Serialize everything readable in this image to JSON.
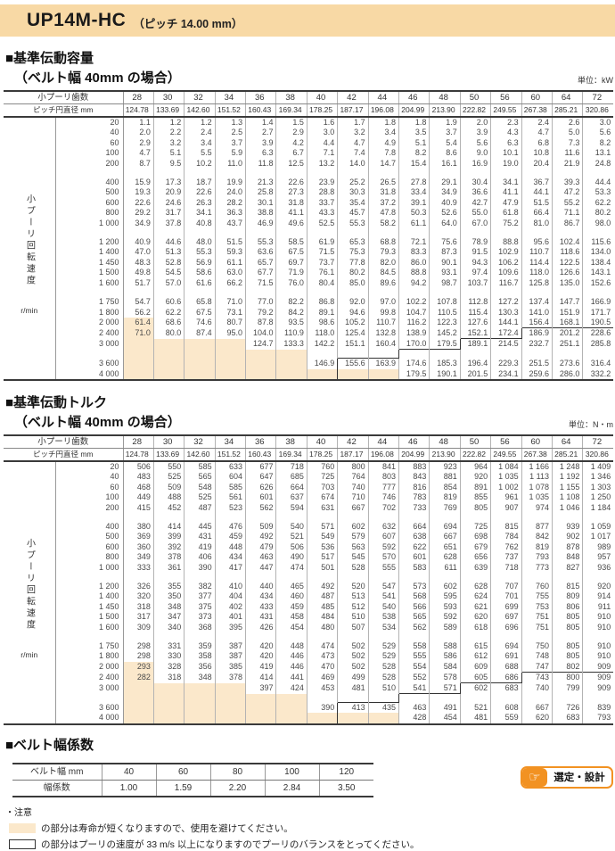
{
  "page": {
    "model": "UP14M-HC",
    "pitch_note": "（ピッチ 14.00 mm）"
  },
  "table_common": {
    "teeth_label": "小プーリ歯数",
    "diameter_label": "ピッチ円直径 mm",
    "teeth": [
      "28",
      "30",
      "32",
      "34",
      "36",
      "38",
      "40",
      "42",
      "44",
      "46",
      "48",
      "50",
      "56",
      "60",
      "64",
      "72"
    ],
    "diameters": [
      "124.78",
      "133.69",
      "142.60",
      "151.52",
      "160.43",
      "169.34",
      "178.25",
      "187.17",
      "196.08",
      "204.99",
      "213.90",
      "222.82",
      "249.55",
      "267.38",
      "285.21",
      "320.86"
    ],
    "side_label": "小プーリ回転速度",
    "side_unit": "r/min"
  },
  "capacity": {
    "title": "■基準伝動容量",
    "subtitle": "（ベルト幅 40mm の場合）",
    "unit": "単位：kW",
    "rows": [
      {
        "r": "20",
        "v": [
          "1.1",
          "1.2",
          "1.2",
          "1.3",
          "1.4",
          "1.5",
          "1.6",
          "1.7",
          "1.8",
          "1.8",
          "1.9",
          "2.0",
          "2.3",
          "2.4",
          "2.6",
          "3.0"
        ]
      },
      {
        "r": "40",
        "v": [
          "2.0",
          "2.2",
          "2.4",
          "2.5",
          "2.7",
          "2.9",
          "3.0",
          "3.2",
          "3.4",
          "3.5",
          "3.7",
          "3.9",
          "4.3",
          "4.7",
          "5.0",
          "5.6"
        ]
      },
      {
        "r": "60",
        "v": [
          "2.9",
          "3.2",
          "3.4",
          "3.7",
          "3.9",
          "4.2",
          "4.4",
          "4.7",
          "4.9",
          "5.1",
          "5.4",
          "5.6",
          "6.3",
          "6.8",
          "7.3",
          "8.2"
        ]
      },
      {
        "r": "100",
        "v": [
          "4.7",
          "5.1",
          "5.5",
          "5.9",
          "6.3",
          "6.7",
          "7.1",
          "7.4",
          "7.8",
          "8.2",
          "8.6",
          "9.0",
          "10.1",
          "10.8",
          "11.6",
          "13.1"
        ]
      },
      {
        "r": "200",
        "v": [
          "8.7",
          "9.5",
          "10.2",
          "11.0",
          "11.8",
          "12.5",
          "13.2",
          "14.0",
          "14.7",
          "15.4",
          "16.1",
          "16.9",
          "19.0",
          "20.4",
          "21.9",
          "24.8"
        ]
      },
      {
        "r": "400",
        "v": [
          "15.9",
          "17.3",
          "18.7",
          "19.9",
          "21.3",
          "22.6",
          "23.9",
          "25.2",
          "26.5",
          "27.8",
          "29.1",
          "30.4",
          "34.1",
          "36.7",
          "39.3",
          "44.4"
        ]
      },
      {
        "r": "500",
        "v": [
          "19.3",
          "20.9",
          "22.6",
          "24.0",
          "25.8",
          "27.3",
          "28.8",
          "30.3",
          "31.8",
          "33.4",
          "34.9",
          "36.6",
          "41.1",
          "44.1",
          "47.2",
          "53.3"
        ]
      },
      {
        "r": "600",
        "v": [
          "22.6",
          "24.6",
          "26.3",
          "28.2",
          "30.1",
          "31.8",
          "33.7",
          "35.4",
          "37.2",
          "39.1",
          "40.9",
          "42.7",
          "47.9",
          "51.5",
          "55.2",
          "62.2"
        ]
      },
      {
        "r": "800",
        "v": [
          "29.2",
          "31.7",
          "34.1",
          "36.3",
          "38.8",
          "41.1",
          "43.3",
          "45.7",
          "47.8",
          "50.3",
          "52.6",
          "55.0",
          "61.8",
          "66.4",
          "71.1",
          "80.2"
        ]
      },
      {
        "r": "1 000",
        "v": [
          "34.9",
          "37.8",
          "40.8",
          "43.7",
          "46.9",
          "49.6",
          "52.5",
          "55.3",
          "58.2",
          "61.1",
          "64.0",
          "67.0",
          "75.2",
          "81.0",
          "86.7",
          "98.0"
        ]
      },
      {
        "r": "1 200",
        "v": [
          "40.9",
          "44.6",
          "48.0",
          "51.5",
          "55.3",
          "58.5",
          "61.9",
          "65.3",
          "68.8",
          "72.1",
          "75.6",
          "78.9",
          "88.8",
          "95.6",
          "102.4",
          "115.6"
        ]
      },
      {
        "r": "1 400",
        "v": [
          "47.0",
          "51.3",
          "55.3",
          "59.3",
          "63.6",
          "67.5",
          "71.5",
          "75.3",
          "79.3",
          "83.3",
          "87.3",
          "91.5",
          "102.9",
          "110.7",
          "118.6",
          "134.0"
        ]
      },
      {
        "r": "1 450",
        "v": [
          "48.3",
          "52.8",
          "56.9",
          "61.1",
          "65.7",
          "69.7",
          "73.7",
          "77.8",
          "82.0",
          "86.0",
          "90.1",
          "94.3",
          "106.2",
          "114.4",
          "122.5",
          "138.4"
        ]
      },
      {
        "r": "1 500",
        "v": [
          "49.8",
          "54.5",
          "58.6",
          "63.0",
          "67.7",
          "71.9",
          "76.1",
          "80.2",
          "84.5",
          "88.8",
          "93.1",
          "97.4",
          "109.6",
          "118.0",
          "126.6",
          "143.1"
        ]
      },
      {
        "r": "1 600",
        "v": [
          "51.7",
          "57.0",
          "61.6",
          "66.2",
          "71.5",
          "76.0",
          "80.4",
          "85.0",
          "89.6",
          "94.2",
          "98.7",
          "103.7",
          "116.7",
          "125.8",
          "135.0",
          "152.6"
        ]
      },
      {
        "r": "1 750",
        "v": [
          "54.7",
          "60.6",
          "65.8",
          "71.0",
          "77.0",
          "82.2",
          "86.8",
          "92.0",
          "97.0",
          "102.2",
          "107.8",
          "112.8",
          "127.2",
          "137.4",
          "147.7",
          "166.9"
        ]
      },
      {
        "r": "1 800",
        "v": [
          "56.2",
          "62.2",
          "67.5",
          "73.1",
          "79.2",
          "84.2",
          "89.1",
          "94.6",
          "99.8",
          "104.7",
          "110.5",
          "115.4",
          "130.3",
          "141.0",
          "151.9",
          "171.7"
        ]
      },
      {
        "r": "2 000",
        "v": [
          "61.4",
          "68.6",
          "74.6",
          "80.7",
          "87.8",
          "93.5",
          "98.6",
          "105.2",
          "110.7",
          "116.2",
          "122.3",
          "127.6",
          "144.1",
          "156.4",
          "168.1",
          "190.5"
        ]
      },
      {
        "r": "2 400",
        "v": [
          "71.0",
          "80.0",
          "87.4",
          "95.0",
          "104.0",
          "110.9",
          "118.0",
          "125.4",
          "132.8",
          "138.9",
          "145.2",
          "152.1",
          "172.4",
          "186.9",
          "201.2",
          "228.6"
        ]
      },
      {
        "r": "3 000",
        "v": [
          "",
          "",
          "",
          "",
          "124.7",
          "133.3",
          "142.2",
          "151.1",
          "160.4",
          "170.0",
          "179.5",
          "189.1",
          "214.5",
          "232.7",
          "251.1",
          "285.8"
        ]
      },
      {
        "r": "3 600",
        "v": [
          "",
          "",
          "",
          "",
          "",
          "",
          "146.9",
          "155.6",
          "163.9",
          "174.6",
          "185.3",
          "196.4",
          "229.3",
          "251.5",
          "273.6",
          "316.4"
        ]
      },
      {
        "r": "4 000",
        "v": [
          "",
          "",
          "",
          "",
          "",
          "",
          "",
          "",
          "",
          "179.5",
          "190.1",
          "201.5",
          "234.1",
          "259.6",
          "286.0",
          "332.2"
        ]
      }
    ]
  },
  "torque": {
    "title": "■基準伝動トルク",
    "subtitle": "（ベルト幅 40mm の場合）",
    "unit": "単位：N・m",
    "rows": [
      {
        "r": "20",
        "v": [
          "506",
          "550",
          "585",
          "633",
          "677",
          "718",
          "760",
          "800",
          "841",
          "883",
          "923",
          "964",
          "1 084",
          "1 166",
          "1 248",
          "1 409"
        ]
      },
      {
        "r": "40",
        "v": [
          "483",
          "525",
          "565",
          "604",
          "647",
          "685",
          "725",
          "764",
          "803",
          "843",
          "881",
          "920",
          "1 035",
          "1 113",
          "1 192",
          "1 346"
        ]
      },
      {
        "r": "60",
        "v": [
          "468",
          "509",
          "548",
          "585",
          "626",
          "664",
          "703",
          "740",
          "777",
          "816",
          "854",
          "891",
          "1 002",
          "1 078",
          "1 155",
          "1 303"
        ]
      },
      {
        "r": "100",
        "v": [
          "449",
          "488",
          "525",
          "561",
          "601",
          "637",
          "674",
          "710",
          "746",
          "783",
          "819",
          "855",
          "961",
          "1 035",
          "1 108",
          "1 250"
        ]
      },
      {
        "r": "200",
        "v": [
          "415",
          "452",
          "487",
          "523",
          "562",
          "594",
          "631",
          "667",
          "702",
          "733",
          "769",
          "805",
          "907",
          "974",
          "1 046",
          "1 184"
        ]
      },
      {
        "r": "400",
        "v": [
          "380",
          "414",
          "445",
          "476",
          "509",
          "540",
          "571",
          "602",
          "632",
          "664",
          "694",
          "725",
          "815",
          "877",
          "939",
          "1 059"
        ]
      },
      {
        "r": "500",
        "v": [
          "369",
          "399",
          "431",
          "459",
          "492",
          "521",
          "549",
          "579",
          "607",
          "638",
          "667",
          "698",
          "784",
          "842",
          "902",
          "1 017"
        ]
      },
      {
        "r": "600",
        "v": [
          "360",
          "392",
          "419",
          "448",
          "479",
          "506",
          "536",
          "563",
          "592",
          "622",
          "651",
          "679",
          "762",
          "819",
          "878",
          "989"
        ]
      },
      {
        "r": "800",
        "v": [
          "349",
          "378",
          "406",
          "434",
          "463",
          "490",
          "517",
          "545",
          "570",
          "601",
          "628",
          "656",
          "737",
          "793",
          "848",
          "957"
        ]
      },
      {
        "r": "1 000",
        "v": [
          "333",
          "361",
          "390",
          "417",
          "447",
          "474",
          "501",
          "528",
          "555",
          "583",
          "611",
          "639",
          "718",
          "773",
          "827",
          "936"
        ]
      },
      {
        "r": "1 200",
        "v": [
          "326",
          "355",
          "382",
          "410",
          "440",
          "465",
          "492",
          "520",
          "547",
          "573",
          "602",
          "628",
          "707",
          "760",
          "815",
          "920"
        ]
      },
      {
        "r": "1 400",
        "v": [
          "320",
          "350",
          "377",
          "404",
          "434",
          "460",
          "487",
          "513",
          "541",
          "568",
          "595",
          "624",
          "701",
          "755",
          "809",
          "914"
        ]
      },
      {
        "r": "1 450",
        "v": [
          "318",
          "348",
          "375",
          "402",
          "433",
          "459",
          "485",
          "512",
          "540",
          "566",
          "593",
          "621",
          "699",
          "753",
          "806",
          "911"
        ]
      },
      {
        "r": "1 500",
        "v": [
          "317",
          "347",
          "373",
          "401",
          "431",
          "458",
          "484",
          "510",
          "538",
          "565",
          "592",
          "620",
          "697",
          "751",
          "805",
          "910"
        ]
      },
      {
        "r": "1 600",
        "v": [
          "309",
          "340",
          "368",
          "395",
          "426",
          "454",
          "480",
          "507",
          "534",
          "562",
          "589",
          "618",
          "696",
          "751",
          "805",
          "910"
        ]
      },
      {
        "r": "1 750",
        "v": [
          "298",
          "331",
          "359",
          "387",
          "420",
          "448",
          "474",
          "502",
          "529",
          "558",
          "588",
          "615",
          "694",
          "750",
          "805",
          "910"
        ]
      },
      {
        "r": "1 800",
        "v": [
          "298",
          "330",
          "358",
          "387",
          "420",
          "446",
          "473",
          "502",
          "529",
          "555",
          "586",
          "612",
          "691",
          "748",
          "805",
          "910"
        ]
      },
      {
        "r": "2 000",
        "v": [
          "293",
          "328",
          "356",
          "385",
          "419",
          "446",
          "470",
          "502",
          "528",
          "554",
          "584",
          "609",
          "688",
          "747",
          "802",
          "909"
        ]
      },
      {
        "r": "2 400",
        "v": [
          "282",
          "318",
          "348",
          "378",
          "414",
          "441",
          "469",
          "499",
          "528",
          "552",
          "578",
          "605",
          "686",
          "743",
          "800",
          "909"
        ]
      },
      {
        "r": "3 000",
        "v": [
          "",
          "",
          "",
          "",
          "397",
          "424",
          "453",
          "481",
          "510",
          "541",
          "571",
          "602",
          "683",
          "740",
          "799",
          "909"
        ]
      },
      {
        "r": "3 600",
        "v": [
          "",
          "",
          "",
          "",
          "",
          "",
          "390",
          "413",
          "435",
          "463",
          "491",
          "521",
          "608",
          "667",
          "726",
          "839"
        ]
      },
      {
        "r": "4 000",
        "v": [
          "",
          "",
          "",
          "",
          "",
          "",
          "",
          "",
          "",
          "428",
          "454",
          "481",
          "559",
          "620",
          "683",
          "793"
        ]
      }
    ]
  },
  "width_factor": {
    "title": "■ベルト幅係数",
    "row1_label": "ベルト幅 mm",
    "row2_label": "幅係数",
    "widths": [
      "40",
      "60",
      "80",
      "100",
      "120"
    ],
    "factors": [
      "1.00",
      "1.59",
      "2.20",
      "2.84",
      "3.50"
    ]
  },
  "badge": {
    "label": "選定・設計",
    "icon_glyph": "☞"
  },
  "notes": {
    "caution": "・注意",
    "legend_avoid": "の部分は寿命が短くなりますので、使用を避けてください。",
    "legend_balance": "の部分はプーリの速度が 33 m/s 以上になりますのでプーリのバランスをとってください。"
  },
  "regions": {
    "avoid_highlight_rows": {
      "17": [
        0
      ],
      "18": [
        0
      ],
      "19": [
        0,
        1,
        2,
        3
      ],
      "gap3": [
        0,
        1,
        2,
        3,
        4,
        5
      ],
      "20": [
        0,
        1,
        2,
        3,
        4,
        5
      ],
      "21": [
        0,
        1,
        2,
        3,
        4,
        5,
        6,
        7,
        8
      ]
    },
    "balance_box_steps": {
      "18": {
        "bt": [
          13,
          14,
          15
        ],
        "bl": [
          13
        ]
      },
      "19": {
        "bt": [
          11,
          12
        ],
        "bl": [
          11
        ]
      },
      "gap3": {
        "bt": [
          9,
          10
        ],
        "bl": [
          9
        ]
      },
      "20": {
        "bt": [
          7,
          8
        ],
        "bl": [
          7
        ]
      },
      "21": {
        "bl": [
          7
        ]
      }
    }
  },
  "colors": {
    "band": "#F8D9A5",
    "highlight": "#FBE8CB",
    "badge_orange": "#F29222"
  }
}
